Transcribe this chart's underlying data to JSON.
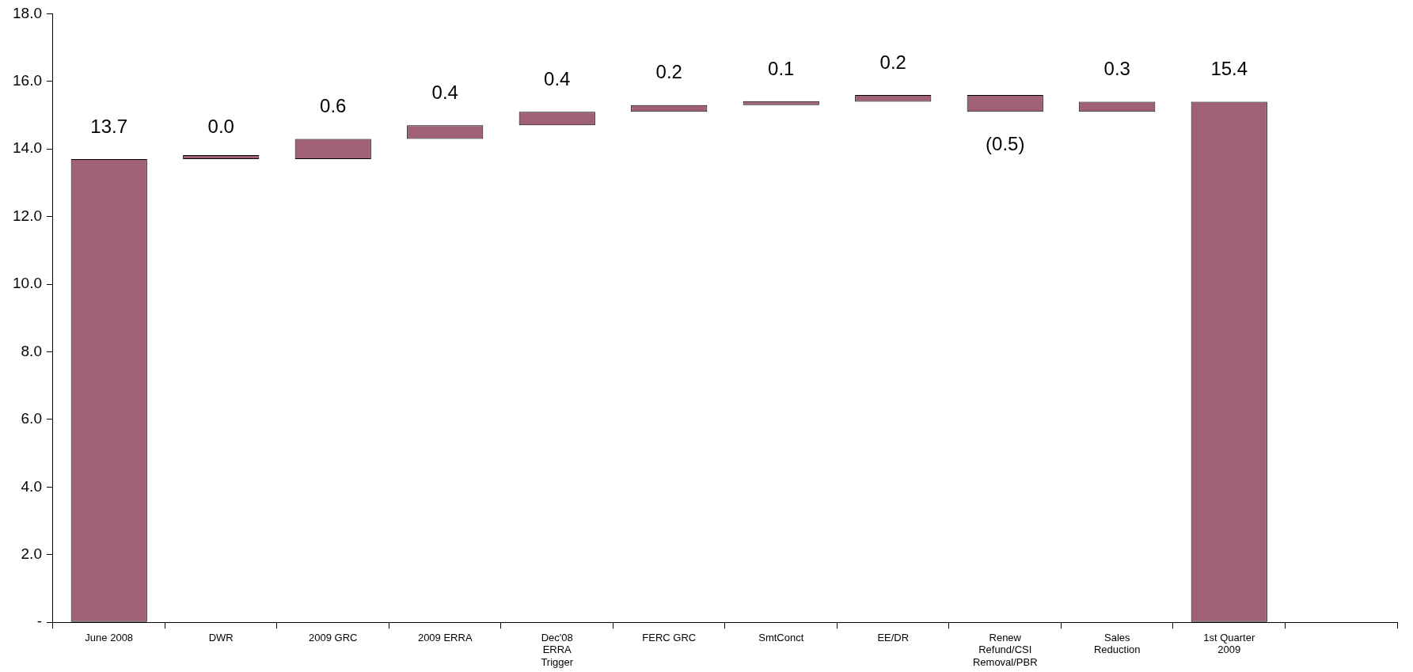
{
  "chart_data": {
    "type": "bar",
    "categories": [
      "June 2008",
      "DWR",
      "2009 GRC",
      "2009 ERRA",
      "Dec'08 ERRA Trigger",
      "FERC GRC",
      "SmtConct",
      "EE/DR",
      "Renew Refund/CSI Removal/PBR",
      "Sales Reduction",
      "1st Quarter 2009",
      null
    ],
    "values": [
      13.7,
      0.0,
      0.6,
      0.4,
      0.4,
      0.2,
      0.1,
      0.2,
      -0.5,
      0.3,
      15.4,
      null
    ],
    "base": [
      0,
      13.7,
      13.7,
      14.3,
      14.7,
      15.1,
      15.3,
      15.4,
      15.6,
      15.1,
      0,
      null
    ],
    "value_labels": [
      "13.7",
      "0.0",
      "0.6",
      "0.4",
      "0.4",
      "0.2",
      "0.1",
      "0.2",
      "(0.5)",
      "0.3",
      "15.4",
      null
    ],
    "color": "#a06078",
    "ylim": [
      0,
      18
    ],
    "yticks": [
      {
        "value": 0,
        "label": "-"
      },
      {
        "value": 2,
        "label": "2.0"
      },
      {
        "value": 4,
        "label": "4.0"
      },
      {
        "value": 6,
        "label": "6.0"
      },
      {
        "value": 8,
        "label": "8.0"
      },
      {
        "value": 10,
        "label": "10.0"
      },
      {
        "value": 12,
        "label": "12.0"
      },
      {
        "value": 14,
        "label": "14.0"
      },
      {
        "value": 16,
        "label": "16.0"
      },
      {
        "value": 18,
        "label": "18.0"
      }
    ],
    "grid": false,
    "legend": false
  }
}
